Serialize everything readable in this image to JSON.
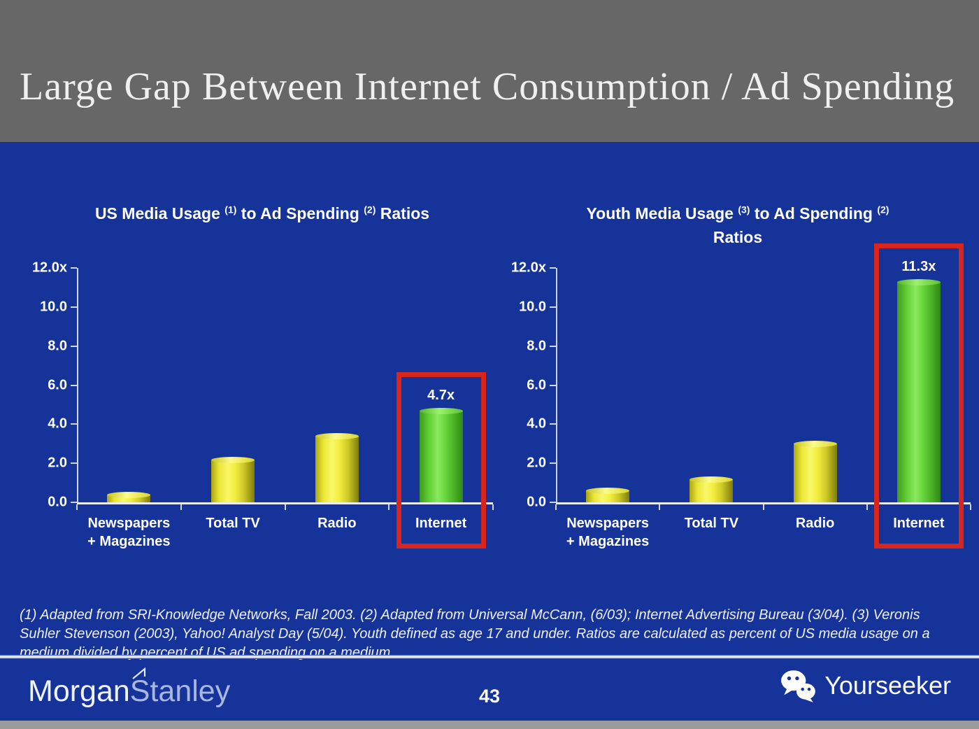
{
  "slide": {
    "title": "Large Gap Between Internet Consumption / Ad Spending",
    "page_number": "43",
    "footnote": "(1) Adapted from SRI-Knowledge Networks, Fall 2003.  (2) Adapted from Universal McCann, (6/03); Internet Advertising Bureau (3/04). (3) Veronis Suhler Stevenson (2003), Yahoo! Analyst Day (5/04).  Youth defined as age 17 and under.  Ratios are calculated as percent of US media usage on a medium divided by percent of US ad spending on a medium.",
    "brand_left": {
      "part1": "Morgan",
      "part2": "Stanley",
      "icon": "morgan-stanley-flag-icon"
    },
    "brand_right": {
      "label": "Yourseeker",
      "icon": "wechat-icon"
    }
  },
  "colors": {
    "background": "#16339A",
    "header_gray": "#676767",
    "bar_yellow": "#EDE93A",
    "bar_green": "#5FCC33",
    "highlight_red": "#D8261D",
    "text": "#FFFFFF"
  },
  "chart_data": [
    {
      "type": "bar",
      "title_parts": [
        {
          "t": "US Media Usage "
        },
        {
          "sup": "(1)"
        },
        {
          "t": " to Ad Spending "
        },
        {
          "sup": "(2)"
        },
        {
          "t": " Ratios"
        }
      ],
      "title_plain": "US Media Usage (1) to Ad Spending (2) Ratios",
      "categories": [
        [
          "Newspapers",
          "+ Magazines"
        ],
        [
          "Total TV"
        ],
        [
          "Radio"
        ],
        [
          "Internet"
        ]
      ],
      "values": [
        0.4,
        2.2,
        3.4,
        4.7
      ],
      "bar_labels": [
        "",
        "",
        "",
        "4.7x"
      ],
      "highlight_index": 3,
      "ylim": [
        0,
        12
      ],
      "yticks": [
        {
          "v": 0,
          "label": "0.0"
        },
        {
          "v": 2,
          "label": "2.0"
        },
        {
          "v": 4,
          "label": "4.0"
        },
        {
          "v": 6,
          "label": "6.0"
        },
        {
          "v": 8,
          "label": "8.0"
        },
        {
          "v": 10,
          "label": "10.0"
        },
        {
          "v": 12,
          "label": "12.0x"
        }
      ],
      "grid": false,
      "legend": "none"
    },
    {
      "type": "bar",
      "title_parts": [
        {
          "t": "Youth Media Usage "
        },
        {
          "sup": "(3)"
        },
        {
          "t": " to Ad Spending "
        },
        {
          "sup": "(2)"
        },
        {
          "br": true
        },
        {
          "t": "Ratios"
        }
      ],
      "title_plain": "Youth Media Usage (3) to Ad Spending (2) Ratios",
      "categories": [
        [
          "Newspapers",
          "+ Magazines"
        ],
        [
          "Total TV"
        ],
        [
          "Radio"
        ],
        [
          "Internet"
        ]
      ],
      "values": [
        0.6,
        1.2,
        3.0,
        11.3
      ],
      "bar_labels": [
        "",
        "",
        "",
        "11.3x"
      ],
      "highlight_index": 3,
      "ylim": [
        0,
        12
      ],
      "yticks": [
        {
          "v": 0,
          "label": "0.0"
        },
        {
          "v": 2,
          "label": "2.0"
        },
        {
          "v": 4,
          "label": "4.0"
        },
        {
          "v": 6,
          "label": "6.0"
        },
        {
          "v": 8,
          "label": "8.0"
        },
        {
          "v": 10,
          "label": "10.0"
        },
        {
          "v": 12,
          "label": "12.0x"
        }
      ],
      "grid": false,
      "legend": "none"
    }
  ]
}
